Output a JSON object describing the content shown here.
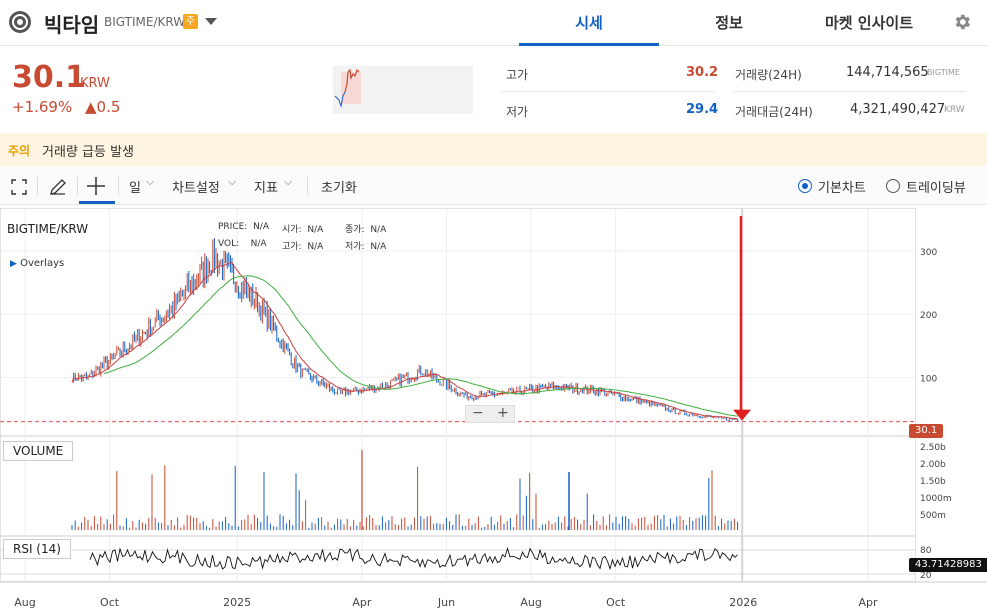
{
  "header": {
    "coin_name": "빅타임",
    "pair": "BIGTIME/KRW",
    "warning_badge": "주",
    "tabs": [
      {
        "label": "시세",
        "active": true
      },
      {
        "label": "정보",
        "active": false
      },
      {
        "label": "마켓 인사이트",
        "active": false
      }
    ],
    "icons": [
      "coin-logo-icon",
      "chevron-down-icon",
      "gear-icon"
    ]
  },
  "ticker": {
    "price": "30.1",
    "unit": "KRW",
    "change_pct": "+1.69%",
    "change_amt": "▲0.5",
    "high_label": "고가",
    "high_value": "30.2",
    "low_label": "저가",
    "low_value": "29.4",
    "volume_label": "거래량(24H)",
    "volume_value": "144,714,565",
    "volume_unit": "BIGTIME",
    "amount_label": "거래대금(24H)",
    "amount_value": "4,321,490,427",
    "amount_unit": "KRW"
  },
  "notice": {
    "label": "주의",
    "text": "거래량 급등 발생"
  },
  "toolbar": {
    "interval": "일",
    "chart_settings": "차트설정",
    "indicators": "지표",
    "reset": "초기화",
    "basic_chart": "기본차트",
    "tradingview": "트레이딩뷰",
    "icons": [
      "fullscreen-icon",
      "pencil-icon",
      "crosshair-icon"
    ]
  },
  "chart": {
    "symbol": "BIGTIME/KRW",
    "overlays": "Overlays",
    "legend": {
      "price_label": "PRICE:",
      "price": "N/A",
      "open_label": "시가:",
      "open": "N/A",
      "close_label": "종가:",
      "close": "N/A",
      "vol_label": "VOL:",
      "vol": "N/A",
      "high_label": "고가:",
      "high": "N/A",
      "low_label": "저가:",
      "low": "N/A"
    },
    "volume_label": "VOLUME",
    "rsi_label": "RSI (14)",
    "last_price_tag": "30.1",
    "rsi_tag": "43.71428983",
    "colors": {
      "up": "#c84a31",
      "down": "#1261c4",
      "ma_short": "#d04040",
      "ma_long": "#3fae3f",
      "rsi": "#111111",
      "annotation": "#e02020"
    }
  },
  "chart_data": {
    "type": "line",
    "title": "BIGTIME/KRW",
    "x_tick_labels": [
      "Aug",
      "Oct",
      "2025",
      "Apr",
      "Jun",
      "Aug",
      "Oct",
      "2026",
      "Apr"
    ],
    "price_axis_ticks": [
      300,
      200,
      100
    ],
    "volume_axis_ticks": [
      "2.50b",
      "2.00b",
      "1.50b",
      "1000m",
      "500m"
    ],
    "rsi_axis_ticks": [
      80,
      20
    ],
    "series": [
      {
        "name": "price",
        "x": [
          "2024-09",
          "2024-10",
          "2024-11",
          "2024-12",
          "2025-01",
          "2025-02",
          "2025-03",
          "2025-04",
          "2025-05",
          "2025-06",
          "2025-07",
          "2025-08",
          "2025-09",
          "2025-10",
          "2025-11",
          "2025-12",
          "2026-01"
        ],
        "values": [
          100,
          150,
          210,
          290,
          220,
          110,
          75,
          85,
          110,
          70,
          75,
          85,
          80,
          65,
          45,
          35,
          30.1
        ]
      }
    ],
    "last_price": 30.1,
    "rsi_last": 43.71428983
  }
}
